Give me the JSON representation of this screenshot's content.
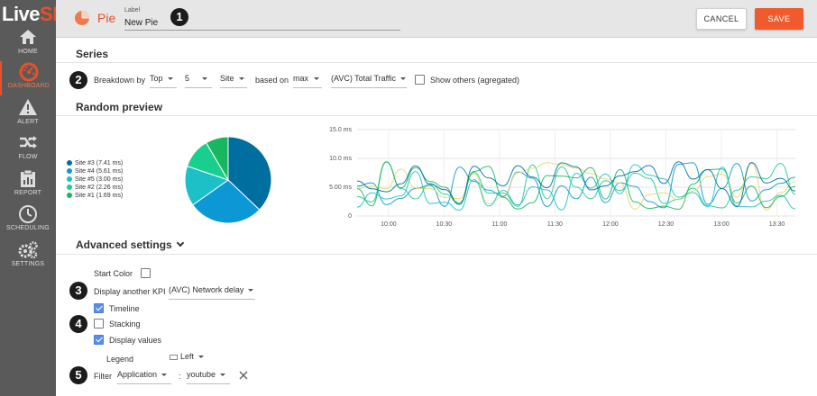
{
  "brand": {
    "text_main": "Live",
    "text_accent": "SP"
  },
  "sidebar": {
    "items": [
      {
        "label": "HOME",
        "icon": "home-icon"
      },
      {
        "label": "DASHBOARD",
        "icon": "dashboard-gauge-icon",
        "active": true
      },
      {
        "label": "ALERT",
        "icon": "alert-icon"
      },
      {
        "label": "FLOW",
        "icon": "flow-icon"
      },
      {
        "label": "REPORT",
        "icon": "report-icon"
      },
      {
        "label": "SCHEDULING",
        "icon": "clock-icon"
      },
      {
        "label": "SETTINGS",
        "icon": "gears-icon"
      }
    ]
  },
  "header": {
    "widget_type": "Pie",
    "label_caption": "Label",
    "label_value": "New Pie",
    "cancel_label": "CANCEL",
    "save_label": "SAVE"
  },
  "steps": [
    "1",
    "2",
    "3",
    "4",
    "5"
  ],
  "series": {
    "title": "Series",
    "breakdown_label": "Breakdown by",
    "direction": "Top",
    "count": "5",
    "dimension": "Site",
    "based_on_label": "based on",
    "aggregate": "max",
    "metric": "(AVC) Total Traffic",
    "show_others_label": "Show others (agregated)",
    "show_others": false
  },
  "preview": {
    "title": "Random preview",
    "legend": [
      {
        "label": "Site #3 (7.41 ms)",
        "color": "#006fa0"
      },
      {
        "label": "Site #4 (5.61 ms)",
        "color": "#0b98d4"
      },
      {
        "label": "Site #5 (3.00 ms)",
        "color": "#1ec0c8"
      },
      {
        "label": "Site #2 (2.26 ms)",
        "color": "#19cf8f"
      },
      {
        "label": "Site #1 (1.69 ms)",
        "color": "#18b65e"
      }
    ]
  },
  "chart_data": [
    {
      "type": "pie",
      "series": [
        {
          "name": "Site #3 (7.41 ms)",
          "value": 7.41,
          "color": "#006fa0"
        },
        {
          "name": "Site #4 (5.61 ms)",
          "value": 5.61,
          "color": "#0b98d4"
        },
        {
          "name": "Site #5 (3.00 ms)",
          "value": 3.0,
          "color": "#1ec0c8"
        },
        {
          "name": "Site #2 (2.26 ms)",
          "value": 2.26,
          "color": "#19cf8f"
        },
        {
          "name": "Site #1 (1.69 ms)",
          "value": 1.69,
          "color": "#18b65e"
        }
      ],
      "legend": "left"
    },
    {
      "type": "line",
      "x_ticks": [
        "10:00",
        "10:30",
        "11:00",
        "11:30",
        "12:00",
        "12:30",
        "13:00",
        "13:30"
      ],
      "y_ticks": [
        "0",
        "5.00 ms",
        "10.0 ms",
        "15.0 ms"
      ],
      "ylim": [
        0,
        15
      ],
      "xlim": [
        "09:43",
        "13:40"
      ],
      "grid": true,
      "series_colors": [
        "#0b98d4",
        "#19cf8f",
        "#e8d66a",
        "#18b65e",
        "#1ec0c8",
        "#006fa0"
      ]
    }
  ],
  "advanced": {
    "title": "Advanced settings",
    "start_color_label": "Start Color",
    "start_color": false,
    "display_kpi_label": "Display another KPI",
    "display_kpi_value": "(AVC) Network delay",
    "timeline_label": "Timeline",
    "timeline": true,
    "stacking_label": "Stacking",
    "stacking": false,
    "display_values_label": "Display values",
    "display_values": true,
    "legend_label": "Legend",
    "legend_value": "Left",
    "filter_label": "Filter",
    "filter_field": "Application",
    "filter_separator": ":",
    "filter_value": "youtube"
  }
}
